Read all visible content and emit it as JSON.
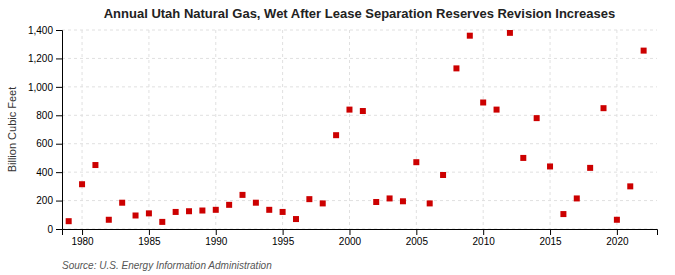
{
  "chart_data": {
    "type": "scatter",
    "title": "Annual Utah Natural Gas, Wet After Lease Separation Reserves Revision Increases",
    "ylabel": "Billion Cubic Feet",
    "source": "Source: U.S. Energy Information Administration",
    "x": [
      1979,
      1980,
      1981,
      1982,
      1983,
      1984,
      1985,
      1986,
      1987,
      1988,
      1989,
      1990,
      1991,
      1992,
      1993,
      1994,
      1995,
      1996,
      1997,
      1998,
      1999,
      2000,
      2001,
      2002,
      2003,
      2004,
      2005,
      2006,
      2007,
      2008,
      2009,
      2010,
      2011,
      2012,
      2013,
      2014,
      2015,
      2016,
      2017,
      2018,
      2019,
      2020,
      2021,
      2022
    ],
    "values": [
      55,
      315,
      450,
      65,
      185,
      95,
      110,
      50,
      120,
      125,
      130,
      135,
      170,
      240,
      185,
      135,
      120,
      70,
      210,
      180,
      660,
      840,
      830,
      190,
      215,
      195,
      470,
      180,
      380,
      1130,
      1360,
      890,
      840,
      1380,
      500,
      780,
      440,
      105,
      215,
      430,
      850,
      65,
      300,
      1255
    ],
    "color": "#cc0000",
    "marker": "square",
    "xlim": [
      1978.5,
      2023
    ],
    "xticks": [
      1980,
      1985,
      1990,
      1995,
      2000,
      2005,
      2010,
      2015,
      2020
    ],
    "ylim": [
      0,
      1400
    ],
    "yticks": [
      0,
      200,
      400,
      600,
      800,
      {
        "value": 1000,
        "label": "1,000"
      },
      {
        "value": 1200,
        "label": "1,200"
      },
      {
        "value": 1400,
        "label": "1,400"
      }
    ],
    "grid": true
  }
}
